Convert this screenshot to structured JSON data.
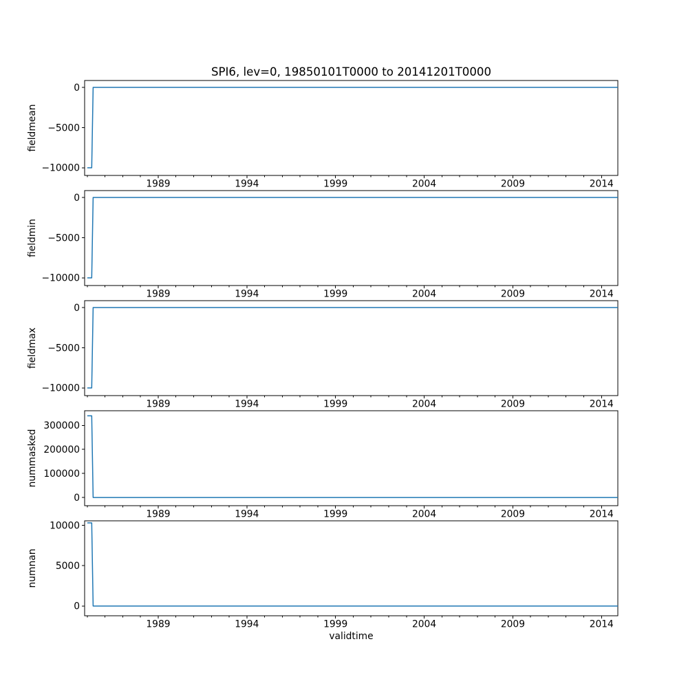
{
  "figure": {
    "title": "SPI6, lev=0, 19850101T0000 to 20141201T0000",
    "background_color": "#ffffff",
    "line_color": "#1f77b4",
    "axis_color": "#000000"
  },
  "chart_data": {
    "type": "line",
    "title": "SPI6, lev=0, 19850101T0000 to 20141201T0000",
    "xlabel": "validtime",
    "legend": "none",
    "grid": false,
    "x_axis": {
      "label": "validtime",
      "xlim": [
        1984.85,
        2014.92
      ],
      "major_tick_values": [
        1989,
        1994,
        1999,
        2004,
        2009,
        2014
      ],
      "major_tick_labels": [
        "1989",
        "1994",
        "1999",
        "2004",
        "2009",
        "2014"
      ],
      "minor_tick_interval": 1
    },
    "subplots": [
      {
        "ylabel": "fieldmean",
        "ylim": [
          -10950,
          860
        ],
        "ytick_values": [
          0,
          -5000,
          -10000
        ],
        "ytick_labels": [
          "0",
          "−5000",
          "−10000"
        ],
        "points": [
          [
            1985.0,
            -10000
          ],
          [
            1985.25,
            -10000
          ],
          [
            1985.33,
            0
          ],
          [
            2014.92,
            0
          ]
        ]
      },
      {
        "ylabel": "fieldmin",
        "ylim": [
          -10950,
          860
        ],
        "ytick_values": [
          0,
          -5000,
          -10000
        ],
        "ytick_labels": [
          "0",
          "−5000",
          "−10000"
        ],
        "points": [
          [
            1985.0,
            -10000
          ],
          [
            1985.25,
            -10000
          ],
          [
            1985.33,
            0
          ],
          [
            2014.92,
            0
          ]
        ]
      },
      {
        "ylabel": "fieldmax",
        "ylim": [
          -10950,
          860
        ],
        "ytick_values": [
          0,
          -5000,
          -10000
        ],
        "ytick_labels": [
          "0",
          "−5000",
          "−10000"
        ],
        "points": [
          [
            1985.0,
            -10000
          ],
          [
            1985.25,
            -10000
          ],
          [
            1985.33,
            0
          ],
          [
            2014.92,
            0
          ]
        ]
      },
      {
        "ylabel": "nummasked",
        "ylim": [
          -34000,
          361000
        ],
        "ytick_values": [
          0,
          100000,
          200000,
          300000
        ],
        "ytick_labels": [
          "0",
          "100000",
          "200000",
          "300000"
        ],
        "points": [
          [
            1985.0,
            340000
          ],
          [
            1985.25,
            340000
          ],
          [
            1985.33,
            0
          ],
          [
            2014.92,
            0
          ]
        ]
      },
      {
        "ylabel": "numnan",
        "ylim": [
          -1200,
          10550
        ],
        "ytick_values": [
          0,
          5000,
          10000
        ],
        "ytick_labels": [
          "0",
          "5000",
          "10000"
        ],
        "points": [
          [
            1985.0,
            10300
          ],
          [
            1985.25,
            10300
          ],
          [
            1985.33,
            0
          ],
          [
            2014.92,
            0
          ]
        ]
      }
    ]
  }
}
